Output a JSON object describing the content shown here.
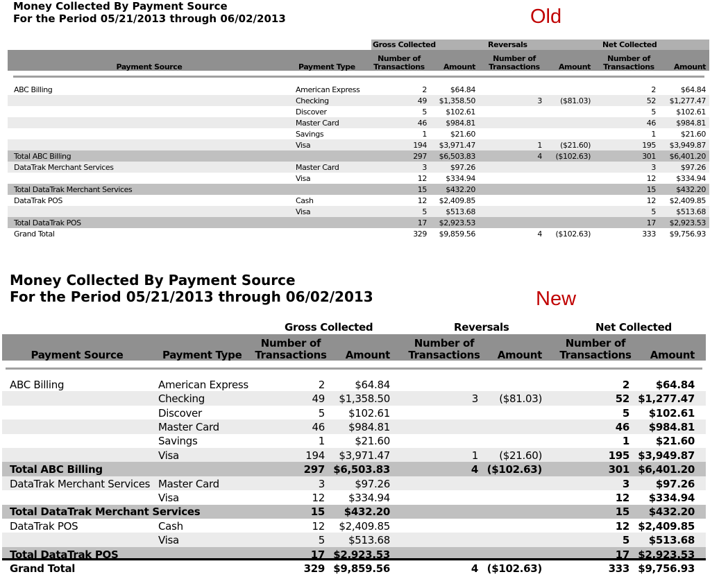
{
  "title_line1": "Money Collected By Payment Source",
  "title_line2": "For the Period 05/21/2013 through 06/02/2013",
  "labels": {
    "old": "Old",
    "new": "New"
  },
  "colors": {
    "label": "#c00000",
    "header_dark": "#909090",
    "header_light": "#b0b0b0",
    "row_alt": "#ebebeb",
    "row_total": "#c0c0c0"
  },
  "headers": {
    "groups": [
      "Gross Collected",
      "Reversals",
      "Net Collected"
    ],
    "payment_source": "Payment Source",
    "payment_type": "Payment Type",
    "num_line1": "Number of",
    "num_line2": "Transactions",
    "amount": "Amount"
  },
  "rows": [
    {
      "kind": "detail",
      "source": "ABC Billing",
      "type": "American Express",
      "gross_n": "2",
      "gross_amt": "$64.84",
      "rev_n": "",
      "rev_amt": "",
      "net_n": "2",
      "net_amt": "$64.84"
    },
    {
      "kind": "detail",
      "source": "",
      "type": "Checking",
      "gross_n": "49",
      "gross_amt": "$1,358.50",
      "rev_n": "3",
      "rev_amt": "($81.03)",
      "net_n": "52",
      "net_amt": "$1,277.47"
    },
    {
      "kind": "detail",
      "source": "",
      "type": "Discover",
      "gross_n": "5",
      "gross_amt": "$102.61",
      "rev_n": "",
      "rev_amt": "",
      "net_n": "5",
      "net_amt": "$102.61"
    },
    {
      "kind": "detail",
      "source": "",
      "type": "Master Card",
      "gross_n": "46",
      "gross_amt": "$984.81",
      "rev_n": "",
      "rev_amt": "",
      "net_n": "46",
      "net_amt": "$984.81"
    },
    {
      "kind": "detail",
      "source": "",
      "type": "Savings",
      "gross_n": "1",
      "gross_amt": "$21.60",
      "rev_n": "",
      "rev_amt": "",
      "net_n": "1",
      "net_amt": "$21.60"
    },
    {
      "kind": "detail",
      "source": "",
      "type": "Visa",
      "gross_n": "194",
      "gross_amt": "$3,971.47",
      "rev_n": "1",
      "rev_amt": "($21.60)",
      "net_n": "195",
      "net_amt": "$3,949.87"
    },
    {
      "kind": "total",
      "source": "Total ABC Billing",
      "type": "",
      "gross_n": "297",
      "gross_amt": "$6,503.83",
      "rev_n": "4",
      "rev_amt": "($102.63)",
      "net_n": "301",
      "net_amt": "$6,401.20"
    },
    {
      "kind": "detail",
      "source": "DataTrak Merchant Services",
      "type": "Master Card",
      "gross_n": "3",
      "gross_amt": "$97.26",
      "rev_n": "",
      "rev_amt": "",
      "net_n": "3",
      "net_amt": "$97.26"
    },
    {
      "kind": "detail",
      "source": "",
      "type": "Visa",
      "gross_n": "12",
      "gross_amt": "$334.94",
      "rev_n": "",
      "rev_amt": "",
      "net_n": "12",
      "net_amt": "$334.94"
    },
    {
      "kind": "total",
      "source": "Total DataTrak Merchant Services",
      "type": "",
      "gross_n": "15",
      "gross_amt": "$432.20",
      "rev_n": "",
      "rev_amt": "",
      "net_n": "15",
      "net_amt": "$432.20"
    },
    {
      "kind": "detail",
      "source": "DataTrak POS",
      "type": "Cash",
      "gross_n": "12",
      "gross_amt": "$2,409.85",
      "rev_n": "",
      "rev_amt": "",
      "net_n": "12",
      "net_amt": "$2,409.85"
    },
    {
      "kind": "detail",
      "source": "",
      "type": "Visa",
      "gross_n": "5",
      "gross_amt": "$513.68",
      "rev_n": "",
      "rev_amt": "",
      "net_n": "5",
      "net_amt": "$513.68"
    },
    {
      "kind": "total",
      "source": "Total DataTrak POS",
      "type": "",
      "gross_n": "17",
      "gross_amt": "$2,923.53",
      "rev_n": "",
      "rev_amt": "",
      "net_n": "17",
      "net_amt": "$2,923.53"
    },
    {
      "kind": "grand",
      "source": "Grand Total",
      "type": "",
      "gross_n": "329",
      "gross_amt": "$9,859.56",
      "rev_n": "4",
      "rev_amt": "($102.63)",
      "net_n": "333",
      "net_amt": "$9,756.93"
    }
  ]
}
